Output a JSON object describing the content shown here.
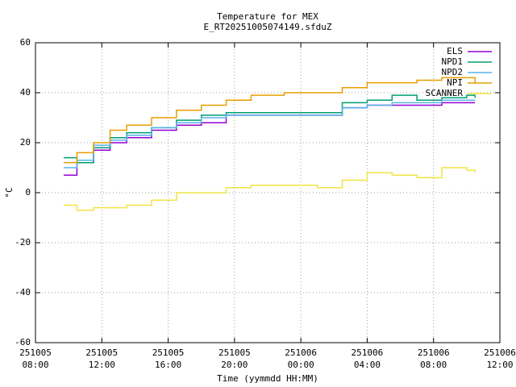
{
  "chart_data": {
    "type": "line",
    "title": "Temperature for MEX",
    "subtitle": "E_RT20251005074149.sfduZ",
    "x_label": "Time (yymmdd HH:MM)",
    "y_label": "°C",
    "x": [
      9.7,
      10.5,
      11.5,
      12.5,
      13.5,
      15,
      16.5,
      18,
      19.5,
      21,
      23,
      25,
      26.5,
      28,
      29.5,
      31,
      32.5,
      34,
      34.5
    ],
    "series": [
      {
        "name": "ELS",
        "color": "#9400d3",
        "values": [
          7,
          12,
          17,
          20,
          22,
          25,
          27,
          28,
          31,
          31,
          31,
          31,
          34,
          35,
          35,
          35,
          36,
          36,
          36
        ]
      },
      {
        "name": "NPD1",
        "color": "#009e73",
        "values": [
          14,
          12,
          18,
          22,
          24,
          26,
          29,
          31,
          32,
          32,
          32,
          32,
          36,
          37,
          39,
          37,
          38,
          39,
          38
        ]
      },
      {
        "name": "NPD2",
        "color": "#56b4e9",
        "values": [
          10,
          13,
          19,
          21,
          23,
          26,
          28,
          30,
          31,
          31,
          31,
          31,
          34,
          35,
          36,
          36,
          37,
          37,
          37
        ]
      },
      {
        "name": "NPI",
        "color": "#e69f00",
        "values": [
          12,
          16,
          20,
          25,
          27,
          30,
          33,
          35,
          37,
          39,
          40,
          40,
          42,
          44,
          44,
          45,
          46,
          46,
          44
        ]
      },
      {
        "name": "SCANNER",
        "color": "#f0e442",
        "values": [
          -5,
          -7,
          -6,
          -6,
          -5,
          -3,
          0,
          0,
          2,
          3,
          3,
          2,
          5,
          8,
          7,
          6,
          10,
          9,
          8
        ]
      }
    ],
    "xlim": [
      8,
      36
    ],
    "xticks": [
      {
        "value": 8,
        "label": "251005 08:00"
      },
      {
        "value": 12,
        "label": "251005 12:00"
      },
      {
        "value": 16,
        "label": "251005 16:00"
      },
      {
        "value": 20,
        "label": "251005 20:00"
      },
      {
        "value": 24,
        "label": "251006 00:00"
      },
      {
        "value": 28,
        "label": "251006 04:00"
      },
      {
        "value": 32,
        "label": "251006 08:00"
      },
      {
        "value": 36,
        "label": "251006 12:00"
      }
    ],
    "ylim": [
      -60,
      60
    ],
    "yticks": [
      -60,
      -40,
      -20,
      0,
      20,
      40,
      60
    ],
    "grid": true,
    "step": true,
    "legend": "top-right"
  }
}
